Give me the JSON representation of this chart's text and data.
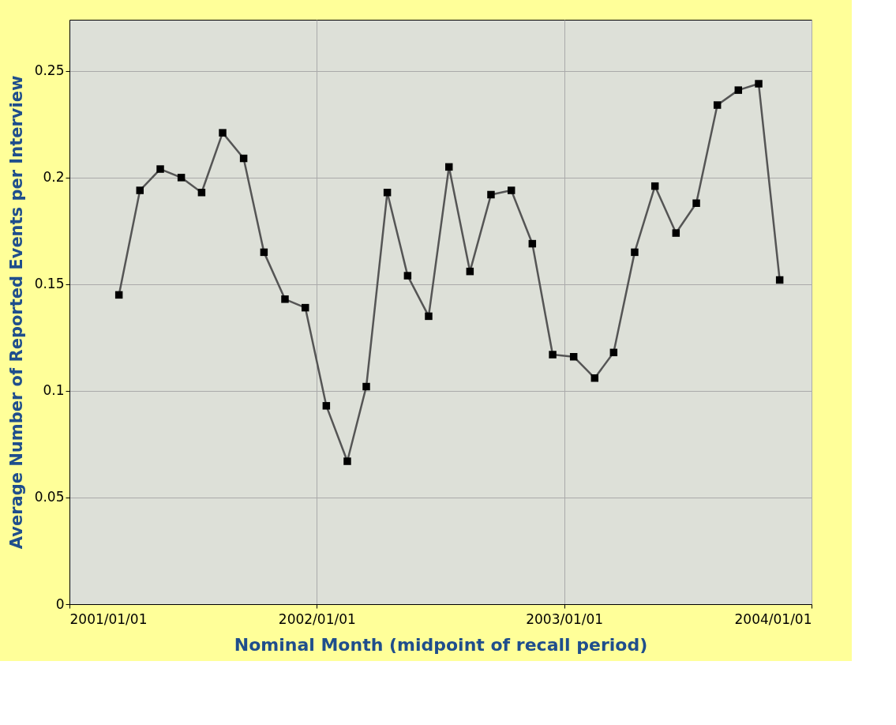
{
  "chart_data": {
    "type": "line",
    "xlabel": "Nominal Month (midpoint of recall period)",
    "ylabel": "Average Number of Reported Events per Interview",
    "x": [
      "2001-03-15",
      "2001-04-15",
      "2001-05-15",
      "2001-06-15",
      "2001-07-15",
      "2001-08-15",
      "2001-09-15",
      "2001-10-15",
      "2001-11-15",
      "2001-12-15",
      "2002-01-15",
      "2002-02-15",
      "2002-03-15",
      "2002-04-15",
      "2002-05-15",
      "2002-06-15",
      "2002-07-15",
      "2002-08-15",
      "2002-09-15",
      "2002-10-15",
      "2002-11-15",
      "2002-12-15",
      "2003-01-15",
      "2003-02-15",
      "2003-03-15",
      "2003-04-15",
      "2003-05-15",
      "2003-06-15",
      "2003-07-15",
      "2003-08-15",
      "2003-09-15",
      "2003-10-15",
      "2003-11-15"
    ],
    "series": [
      {
        "color": "#555555",
        "values": [
          0.145,
          0.194,
          0.204,
          0.2,
          0.193,
          0.221,
          0.209,
          0.165,
          0.143,
          0.139,
          0.093,
          0.067,
          0.102,
          0.193,
          0.154,
          0.135,
          0.205,
          0.156,
          0.192,
          0.194,
          0.169,
          0.117,
          0.116,
          0.106,
          0.118,
          0.165,
          0.196,
          0.174,
          0.188,
          0.234,
          0.241,
          0.244,
          0.152
        ]
      }
    ],
    "xlim": [
      "2001-01-01",
      "2004-01-01"
    ],
    "xticks": [
      {
        "value": "2001-01-01",
        "label": "2001/01/01"
      },
      {
        "value": "2002-01-01",
        "label": "2002/01/01"
      },
      {
        "value": "2003-01-01",
        "label": "2003/01/01"
      },
      {
        "value": "2004-01-01",
        "label": "2004/01/01"
      }
    ],
    "ylim": [
      0,
      0.274
    ],
    "yticks": [
      0,
      0.05,
      0.1,
      0.15,
      0.2,
      0.25
    ],
    "grid": true,
    "marker": "square",
    "line_style": "solid"
  }
}
